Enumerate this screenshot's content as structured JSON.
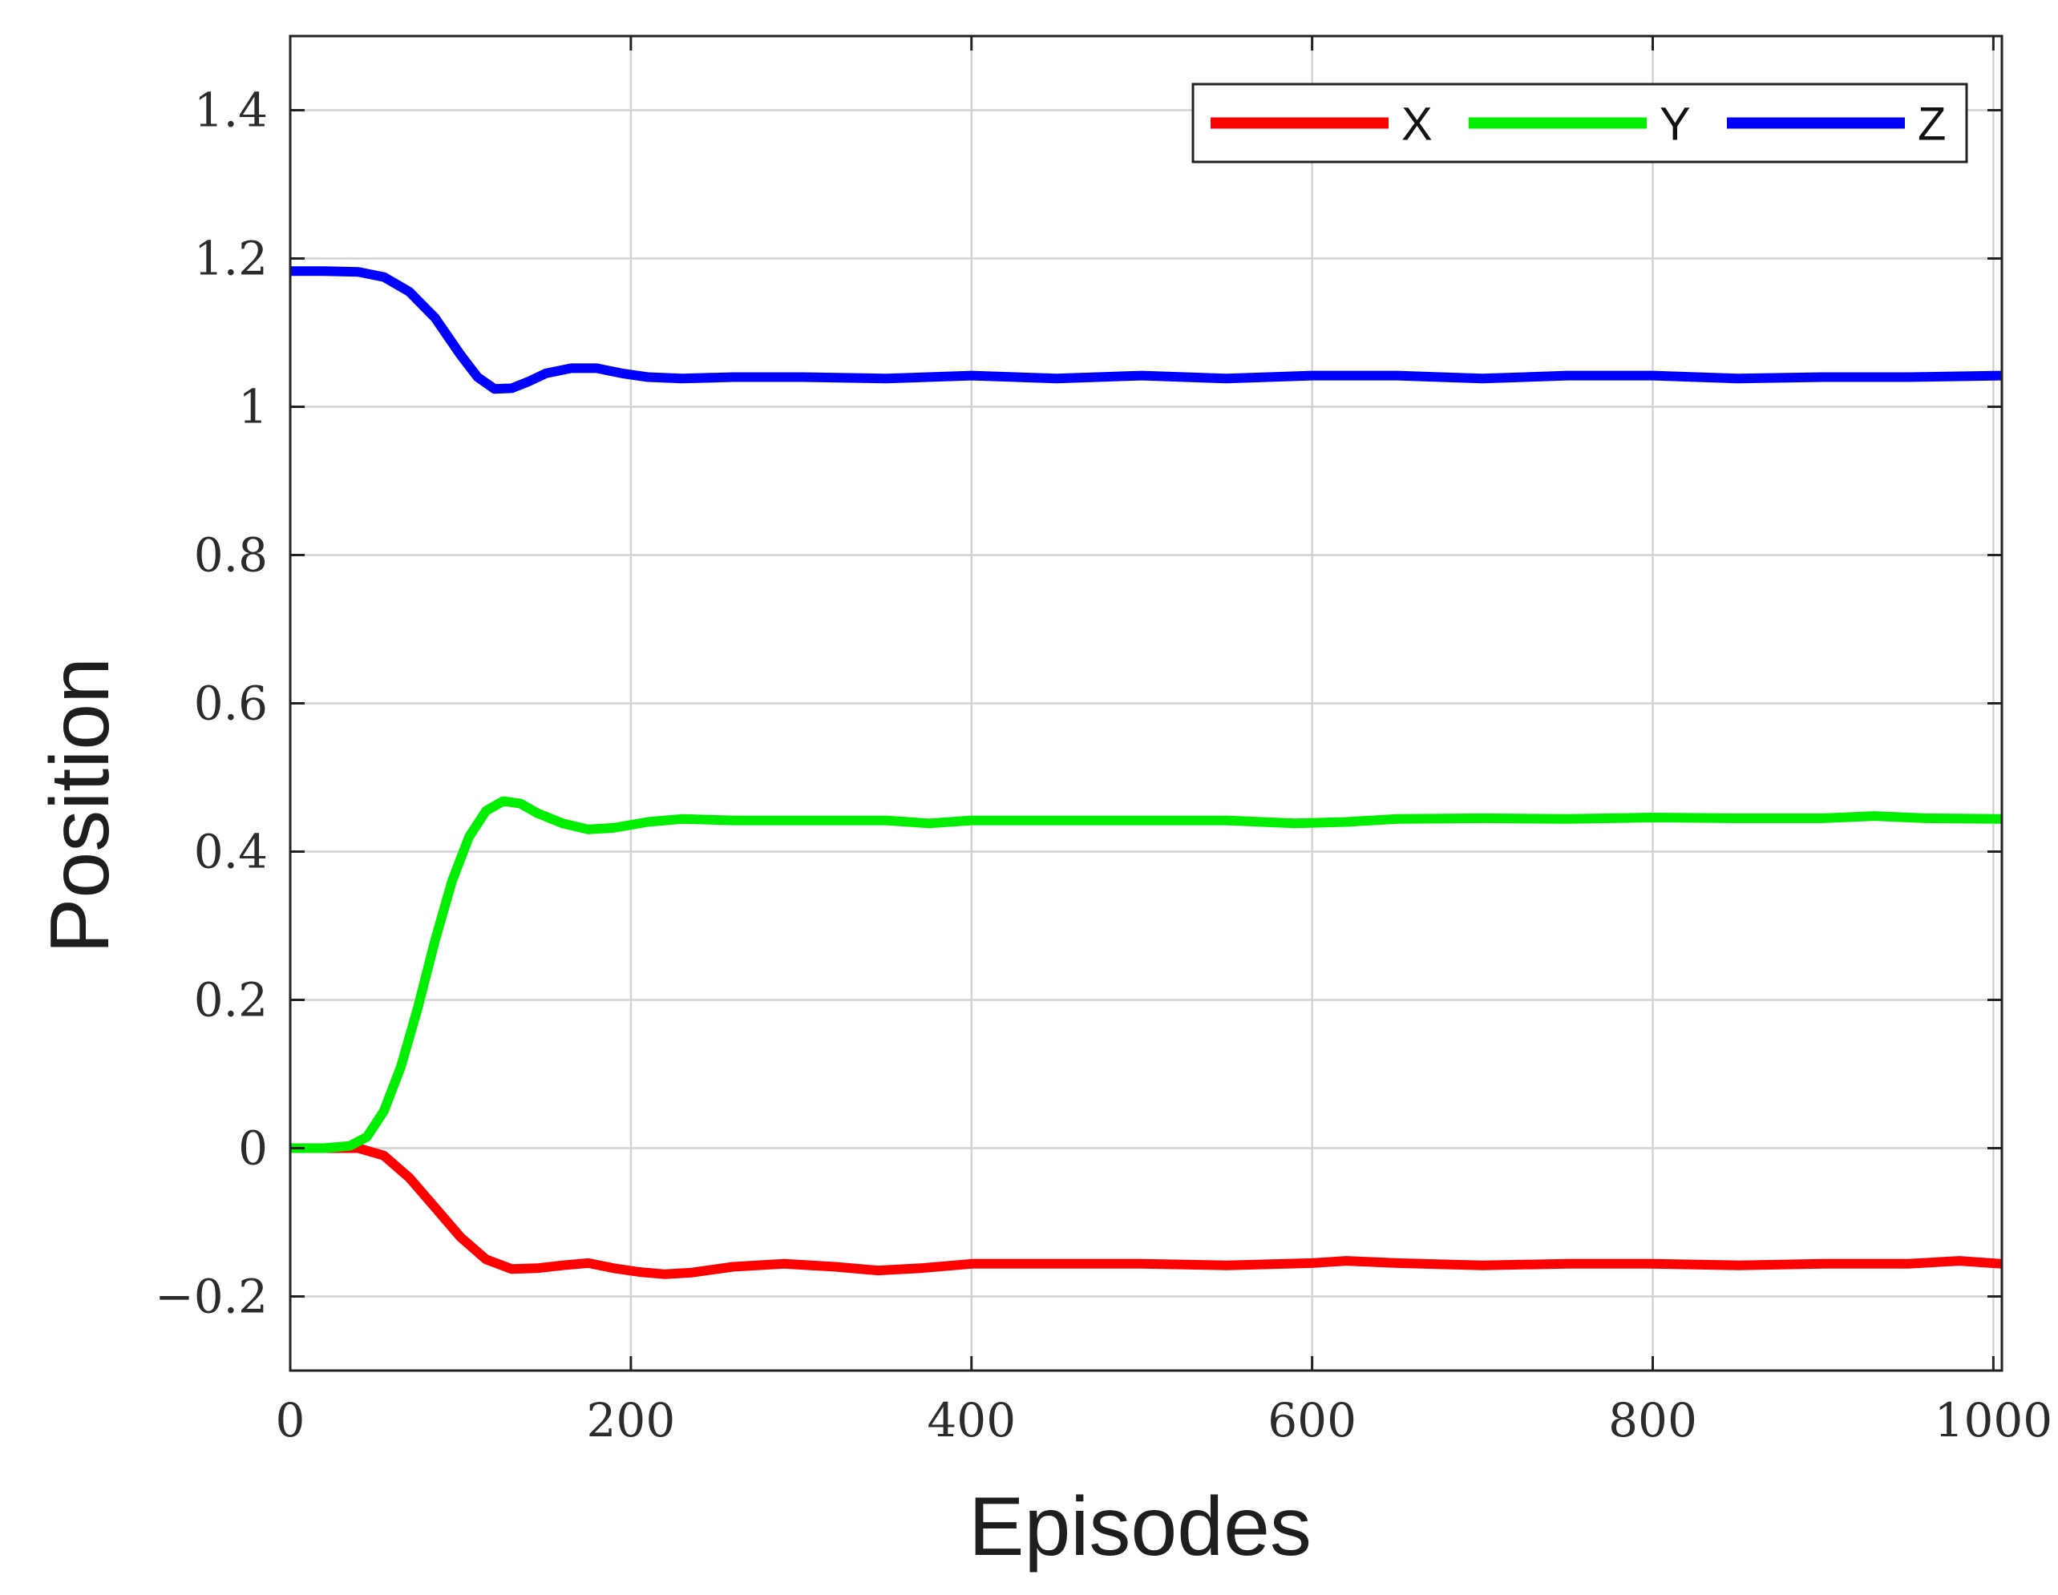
{
  "chart_data": {
    "type": "line",
    "title": "",
    "xlabel": "Episodes",
    "ylabel": "Position",
    "xlim": [
      0,
      1005
    ],
    "ylim": [
      -0.3,
      1.5
    ],
    "xticks": [
      0,
      200,
      400,
      600,
      800,
      1000
    ],
    "xtick_labels": [
      "0",
      "200",
      "400",
      "600",
      "800",
      "1000"
    ],
    "yticks": [
      -0.2,
      0,
      0.2,
      0.4,
      0.6,
      0.8,
      1,
      1.2,
      1.4
    ],
    "ytick_labels": [
      "−0.2",
      "0",
      "0.2",
      "0.4",
      "0.6",
      "0.8",
      "1",
      "1.2",
      "1.4"
    ],
    "grid": true,
    "legend_position": "top-right",
    "series": [
      {
        "name": "X",
        "color": "#ff0000",
        "x": [
          0,
          20,
          40,
          55,
          70,
          85,
          100,
          115,
          130,
          145,
          160,
          175,
          190,
          205,
          220,
          235,
          260,
          290,
          320,
          345,
          370,
          400,
          450,
          500,
          550,
          600,
          620,
          650,
          700,
          750,
          800,
          850,
          900,
          950,
          980,
          1005
        ],
        "y": [
          0,
          0,
          0,
          -0.01,
          -0.04,
          -0.08,
          -0.12,
          -0.15,
          -0.163,
          -0.162,
          -0.158,
          -0.155,
          -0.162,
          -0.167,
          -0.17,
          -0.168,
          -0.16,
          -0.156,
          -0.16,
          -0.165,
          -0.162,
          -0.156,
          -0.156,
          -0.156,
          -0.158,
          -0.155,
          -0.152,
          -0.155,
          -0.158,
          -0.156,
          -0.156,
          -0.158,
          -0.156,
          -0.156,
          -0.152,
          -0.156
        ]
      },
      {
        "name": "Y",
        "color": "#00ee00",
        "x": [
          0,
          20,
          35,
          45,
          55,
          65,
          75,
          85,
          95,
          105,
          115,
          125,
          135,
          145,
          160,
          175,
          190,
          210,
          230,
          260,
          300,
          350,
          375,
          400,
          450,
          500,
          550,
          590,
          620,
          650,
          700,
          750,
          800,
          850,
          900,
          930,
          960,
          1005
        ],
        "y": [
          0,
          0,
          0.003,
          0.015,
          0.05,
          0.11,
          0.19,
          0.28,
          0.36,
          0.42,
          0.455,
          0.468,
          0.465,
          0.452,
          0.438,
          0.43,
          0.432,
          0.44,
          0.444,
          0.442,
          0.442,
          0.442,
          0.438,
          0.442,
          0.442,
          0.442,
          0.442,
          0.438,
          0.44,
          0.444,
          0.445,
          0.444,
          0.446,
          0.445,
          0.445,
          0.448,
          0.445,
          0.444
        ]
      },
      {
        "name": "Z",
        "color": "#0000ff",
        "x": [
          0,
          20,
          40,
          55,
          70,
          85,
          100,
          110,
          120,
          130,
          140,
          150,
          165,
          180,
          195,
          210,
          230,
          260,
          300,
          350,
          400,
          450,
          500,
          550,
          600,
          650,
          700,
          750,
          800,
          850,
          900,
          950,
          1005
        ],
        "y": [
          1.183,
          1.183,
          1.182,
          1.175,
          1.155,
          1.12,
          1.07,
          1.04,
          1.024,
          1.025,
          1.034,
          1.045,
          1.052,
          1.052,
          1.045,
          1.04,
          1.038,
          1.04,
          1.04,
          1.038,
          1.042,
          1.038,
          1.042,
          1.038,
          1.042,
          1.042,
          1.038,
          1.042,
          1.042,
          1.038,
          1.04,
          1.04,
          1.042
        ]
      }
    ]
  }
}
